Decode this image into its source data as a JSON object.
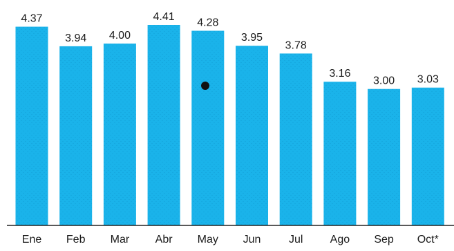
{
  "chart_data": {
    "type": "bar",
    "title": "",
    "xlabel": "",
    "ylabel": "",
    "categories": [
      "Ene",
      "Feb",
      "Mar",
      "Abr",
      "May",
      "Jun",
      "Jul",
      "Ago",
      "Sep",
      "Oct*"
    ],
    "values": [
      4.37,
      3.94,
      4.0,
      4.41,
      4.28,
      3.95,
      3.78,
      3.16,
      3.0,
      3.03
    ],
    "value_labels": [
      "4.37",
      "3.94",
      "4.00",
      "4.41",
      "4.28",
      "3.95",
      "3.78",
      "3.16",
      "3.00",
      "3.03"
    ],
    "ylim": [
      0,
      4.41
    ],
    "grid": false,
    "legend": "none",
    "colors": {
      "bar": "#1ab3ea",
      "bar_texture": "#0f94cf",
      "text": "#1a1a1a",
      "axis": "#222222",
      "marker": "#111111"
    }
  }
}
